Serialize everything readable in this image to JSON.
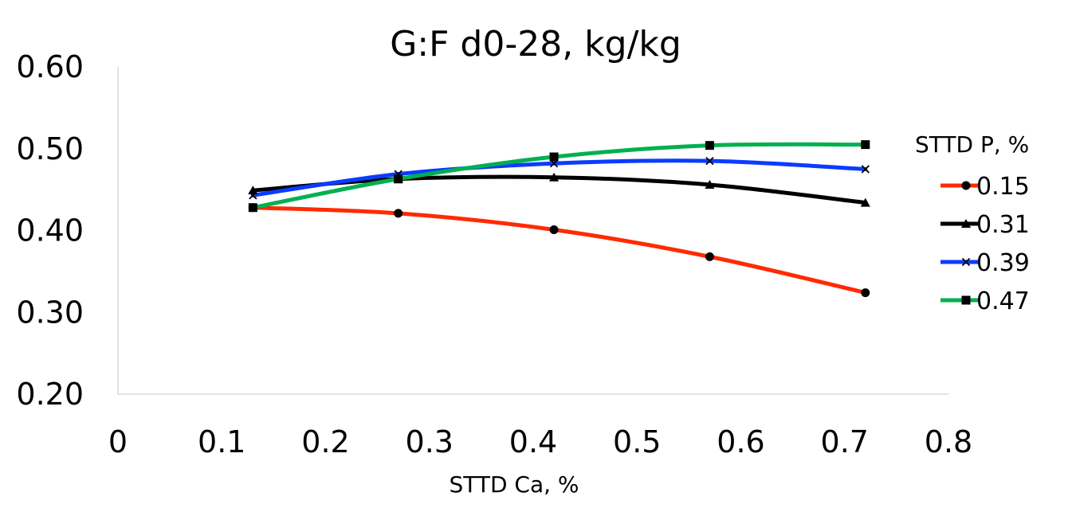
{
  "chart_data": {
    "type": "line",
    "title": "G:F d0-28, kg/kg",
    "xlabel": "STTD Ca, %",
    "ylabel": "",
    "xlim": [
      0,
      0.8
    ],
    "ylim": [
      0.2,
      0.6
    ],
    "xticks": [
      "0",
      "0.1",
      "0.2",
      "0.3",
      "0.4",
      "0.5",
      "0.6",
      "0.7",
      "0.8"
    ],
    "yticks": [
      "0.20",
      "0.30",
      "0.40",
      "0.50",
      "0.60"
    ],
    "grid": false,
    "smooth": true,
    "legend": {
      "title": "STTD P, %",
      "position": "right"
    },
    "x": [
      0.13,
      0.27,
      0.42,
      0.57,
      0.72
    ],
    "series": [
      {
        "name": "0.15",
        "color": "#ff2a00",
        "marker": "circle",
        "values": [
          0.428,
          0.421,
          0.401,
          0.368,
          0.324
        ]
      },
      {
        "name": "0.31",
        "color": "#000000",
        "marker": "triangle",
        "values": [
          0.449,
          0.463,
          0.465,
          0.456,
          0.434
        ]
      },
      {
        "name": "0.39",
        "color": "#0a3cff",
        "marker": "x",
        "values": [
          0.443,
          0.469,
          0.482,
          0.485,
          0.475
        ]
      },
      {
        "name": "0.47",
        "color": "#00b050",
        "marker": "square",
        "values": [
          0.428,
          0.463,
          0.49,
          0.504,
          0.505
        ]
      }
    ]
  }
}
